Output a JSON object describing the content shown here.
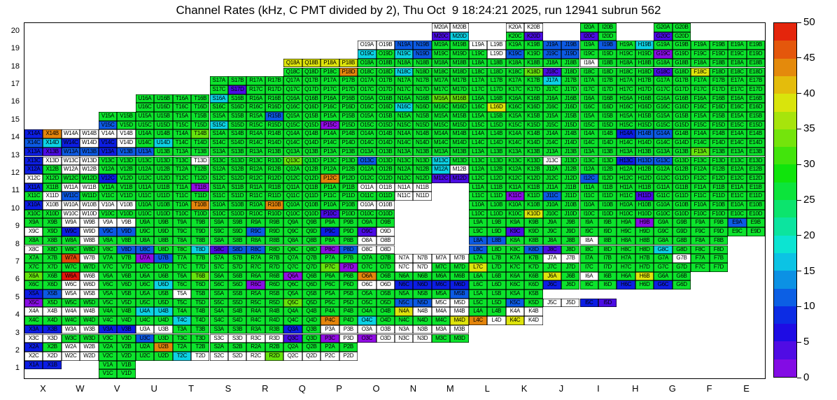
{
  "title": "Channel Rates (kHz, C PMT divided by 2), Thu Oct  9 18:24:21 2025, run 12941 subrun 562",
  "chart_data": {
    "type": "heatmap",
    "title": "Channel Rates (kHz, C PMT divided by 2), Thu Oct  9 18:24:21 2025, run 12941 subrun 562",
    "units": "kHz",
    "x_axis": {
      "labels": [
        "X",
        "W",
        "V",
        "U",
        "T",
        "S",
        "R",
        "Q",
        "P",
        "O",
        "N",
        "M",
        "L",
        "K",
        "J",
        "I",
        "H",
        "G",
        "F",
        "E"
      ]
    },
    "y_axis": {
      "labels": [
        20,
        19,
        18,
        17,
        16,
        15,
        14,
        13,
        12,
        11,
        10,
        9,
        8,
        7,
        6,
        5,
        4,
        3,
        2,
        1
      ]
    },
    "cell_suffixes": [
      [
        "A",
        "B"
      ],
      [
        "C",
        "D"
      ]
    ],
    "colorbar": {
      "min": 0,
      "max": 50,
      "ticks": [
        0,
        5,
        10,
        15,
        20,
        25,
        30,
        35,
        40,
        45,
        50
      ],
      "position": "right"
    },
    "value_codes": {
      ".": null,
      "w": 0,
      "v": 0.5,
      "m": 1,
      "d": 4,
      "b": 8,
      "B": 11,
      "c": 17,
      "g": 27,
      "G": 33,
      "y": 39,
      "o": 44,
      "O": 47,
      "r": 49.5
    },
    "grid": [
      [
        "....",
        "....",
        "....",
        "....",
        "....",
        "....",
        "....",
        "....",
        "....",
        "....",
        "....",
        "wwdc",
        "....",
        "wwgd",
        "....",
        "ggdg",
        "....",
        "ggdg",
        "....",
        "...."
      ],
      [
        "....",
        "....",
        "....",
        "....",
        "....",
        "....",
        "....",
        "....",
        "....",
        "wwcg",
        "BBcB",
        "gggg",
        "wwgw",
        "ggBg",
        "BBBB",
        "gBgg",
        "gcgg",
        "ggmg",
        "gggg",
        "gggg"
      ],
      [
        "....",
        "....",
        "....",
        "....",
        "....",
        "....",
        "....",
        "yygg",
        "yygo",
        "gggg",
        "ggcg",
        "gggg",
        "gggg",
        "gggG",
        "ggdg",
        "wggg",
        "gggg",
        "ggdg",
        "ggyg",
        "gggg"
      ],
      [
        "....",
        "....",
        "....",
        "....",
        "....",
        "gggd",
        "gggg",
        "gggg",
        "gggg",
        "gggg",
        "gggg",
        "gggg",
        "gggg",
        "gggg",
        "cggg",
        "gggg",
        "gggg",
        "gggg",
        "gggg",
        "gggg"
      ],
      [
        "....",
        "....",
        "....",
        "gggg",
        "gggg",
        "cggg",
        "gggg",
        "gggg",
        "gggg",
        "gggg",
        "ggcg",
        "GGgg",
        "gggy",
        "gggg",
        "gggg",
        "gggg",
        "gggg",
        "gggg",
        "gggg",
        "gggg"
      ],
      [
        "....",
        "....",
        "ggBg",
        "gggg",
        "gggg",
        "ggcg",
        "gBgg",
        "gggg",
        "ggvg",
        "gggg",
        "gggg",
        "gggg",
        "gggg",
        "gggg",
        "gggg",
        "gggg",
        "gggg",
        "gggg",
        "gggg",
        "gggg"
      ],
      [
        "boBc",
        "wwbw",
        "wwbw",
        "gggc",
        "gGgg",
        "gggg",
        "gggg",
        "gggg",
        "gggg",
        "gggg",
        "gggg",
        "gggg",
        "gggg",
        "gggg",
        "gggg",
        "gggg",
        "bBgg",
        "Bggg",
        "gggg",
        "gggg"
      ],
      [
        "bdbw",
        "BBww",
        "bBgg",
        "Bggg",
        "gggw",
        "gggg",
        "gggg",
        "ggGg",
        "gggg",
        "ggBg",
        "gggg",
        "ggcg",
        "gggg",
        "gggg",
        "ggwg",
        "gggg",
        "ggbB",
        "ggBg",
        "Gggg",
        "gggg"
      ],
      [
        "bgwg",
        "wwgg",
        "ggbg",
        "gggg",
        "gggg",
        "gggg",
        "gggg",
        "gggg",
        "ggog",
        "gggg",
        "gggg",
        "cwdd",
        "gggg",
        "gggg",
        "gggg",
        "ggBg",
        "gggg",
        "gggg",
        "gggg",
        "gggg"
      ],
      [
        "bggw",
        "wwBg",
        "gggg",
        "gggg",
        "gvgg",
        "gggg",
        "gggg",
        "gggg",
        "gggg",
        "wwgg",
        "wwww",
        "....",
        "gggg",
        "ggmg",
        "ggBg",
        "gggg",
        "gggd",
        "gggg",
        "gggg",
        "gggg"
      ],
      [
        "bwgg",
        "wwww",
        "wwgg",
        "gggg",
        "gogg",
        "gggg",
        "gogg",
        "gggg",
        "ggdg",
        "wwgg",
        "....",
        "....",
        "gggg",
        "gggy",
        "gggg",
        "gggg",
        "gggg",
        "gggg",
        "gggg",
        "gggg"
      ],
      [
        "ggwg",
        "wwbw",
        "wwBB",
        "gggg",
        "gggg",
        "gggg",
        "ggBg",
        "gggg",
        "ggbg",
        "ggdw",
        "....",
        "....",
        "gggg",
        "ggdg",
        "gggg",
        "gggg",
        "gmgg",
        "gggg",
        "gggg",
        "Bggg"
      ],
      [
        "ggwg",
        "gwgg",
        "gggB",
        "ggBg",
        "gggc",
        "ggdB",
        "ggBg",
        "gggg",
        "ggmB",
        "wwww",
        "....",
        "....",
        "BBBg",
        "gggB",
        "ggdg",
        "wggg",
        "gggg",
        "ggcg",
        "gggg",
        "...."
      ],
      [
        "gggg",
        "Owgg",
        "gggg",
        "vBgg",
        "gggg",
        "gggg",
        "gggg",
        "gggg",
        "ggGv",
        "gggg",
        "wwww",
        "wwgg",
        "ggyg",
        "gggg",
        "wwgg",
        "gggg",
        "gggg",
        "gwgg",
        "gggg",
        "...."
      ],
      [
        "Gggg",
        "rwww",
        "gggg",
        "gggc",
        "gGgg",
        "gggg",
        "ggmg",
        "vggg",
        "gggg",
        "ogww",
        "ggbb",
        "ggbb",
        "gggg",
        "gggg",
        "ygbg",
        "wggg",
        "gybg",
        "ggbg",
        "....",
        "...."
      ],
      [
        "bBmg",
        "wwgg",
        "gggg",
        "gggg",
        "wggg",
        "gggg",
        "gggg",
        "ggGg",
        "gggg",
        "gggg",
        "ggBB",
        "gBww",
        "gggg",
        "ggBg",
        "..ww",
        "..bd",
        "....",
        "....",
        "....",
        "...."
      ],
      [
        "wwgg",
        "wwgg",
        "gggg",
        "ccgg",
        "ggcg",
        "gggg",
        "gggg",
        "gggg",
        "ggog",
        "ggcg",
        "ywgg",
        "wwgy",
        "ggow",
        "wwyw",
        "....",
        "....",
        "....",
        "....",
        "....",
        "...."
      ],
      [
        "bbww",
        "wwgg",
        "bbgg",
        "wwBg",
        "gggg",
        "ggww",
        "ggww",
        "bgdg",
        "wwvw",
        "wwvw",
        "wwww",
        "wwgg",
        "....",
        "....",
        "....",
        "....",
        "....",
        "....",
        "....",
        "...."
      ],
      [
        "bgww",
        "wwww",
        "gggg",
        "gogg",
        "ggcw",
        "ggww",
        "ggwG",
        "ggww",
        "ggww",
        "....",
        "....",
        "....",
        "....",
        "....",
        "....",
        "....",
        "....",
        "....",
        "....",
        "...."
      ],
      [
        "bb..",
        "....",
        "gggg",
        "....",
        "....",
        "....",
        "....",
        "....",
        "....",
        "....",
        "....",
        "....",
        "....",
        "....",
        "....",
        "....",
        "....",
        "....",
        "....",
        "...."
      ]
    ]
  }
}
